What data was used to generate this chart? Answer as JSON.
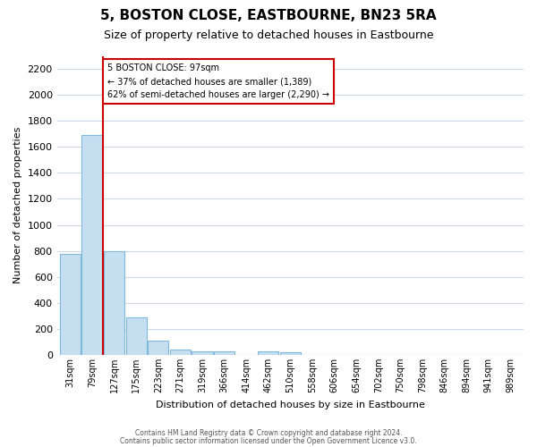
{
  "title": "5, BOSTON CLOSE, EASTBOURNE, BN23 5RA",
  "subtitle": "Size of property relative to detached houses in Eastbourne",
  "xlabel": "Distribution of detached houses by size in Eastbourne",
  "ylabel": "Number of detached properties",
  "footer_line1": "Contains HM Land Registry data © Crown copyright and database right 2024.",
  "footer_line2": "Contains public sector information licensed under the Open Government Licence v3.0.",
  "bar_labels": [
    "31sqm",
    "79sqm",
    "127sqm",
    "175sqm",
    "223sqm",
    "271sqm",
    "319sqm",
    "366sqm",
    "414sqm",
    "462sqm",
    "510sqm",
    "558sqm",
    "606sqm",
    "654sqm",
    "702sqm",
    "750sqm",
    "798sqm",
    "846sqm",
    "894sqm",
    "941sqm",
    "989sqm"
  ],
  "bar_values": [
    780,
    1690,
    800,
    290,
    110,
    40,
    30,
    28,
    0,
    25,
    22,
    0,
    0,
    0,
    0,
    0,
    0,
    0,
    0,
    0,
    0
  ],
  "bar_color": "#c5dff0",
  "bar_edge_color": "#7fb8db",
  "property_line_label": "5 BOSTON CLOSE: 97sqm",
  "annotation_line1": "← 37% of detached houses are smaller (1,389)",
  "annotation_line2": "62% of semi-detached houses are larger (2,290) →",
  "ylim": [
    0,
    2300
  ],
  "yticks": [
    0,
    200,
    400,
    600,
    800,
    1000,
    1200,
    1400,
    1600,
    1800,
    2000,
    2200
  ],
  "bg_color": "#ffffff",
  "grid_color": "#ccd9e8",
  "red_line_color": "#cc0000",
  "title_fontsize": 11,
  "subtitle_fontsize": 9
}
